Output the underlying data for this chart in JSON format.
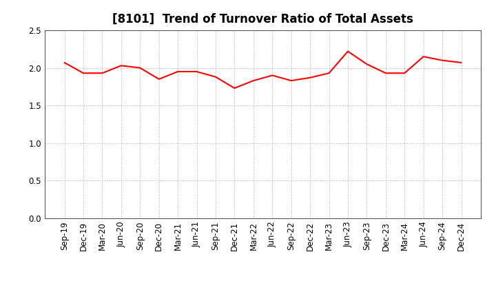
{
  "title": "[8101]  Trend of Turnover Ratio of Total Assets",
  "labels": [
    "Sep-19",
    "Dec-19",
    "Mar-20",
    "Jun-20",
    "Sep-20",
    "Dec-20",
    "Mar-21",
    "Jun-21",
    "Sep-21",
    "Dec-21",
    "Mar-22",
    "Jun-22",
    "Sep-22",
    "Dec-22",
    "Mar-23",
    "Jun-23",
    "Sep-23",
    "Dec-23",
    "Mar-24",
    "Jun-24",
    "Sep-24",
    "Dec-24"
  ],
  "values": [
    2.07,
    1.93,
    1.93,
    2.03,
    2.0,
    1.85,
    1.95,
    1.95,
    1.88,
    1.73,
    1.83,
    1.9,
    1.83,
    1.87,
    1.93,
    2.22,
    2.05,
    1.93,
    1.93,
    2.15,
    2.1,
    2.07
  ],
  "line_color": "#FF0000",
  "line_width": 1.5,
  "bg_color": "#FFFFFF",
  "grid_color": "#AAAAAA",
  "ylim": [
    0.0,
    2.5
  ],
  "yticks": [
    0.0,
    0.5,
    1.0,
    1.5,
    2.0,
    2.5
  ],
  "title_fontsize": 12,
  "tick_fontsize": 8.5
}
